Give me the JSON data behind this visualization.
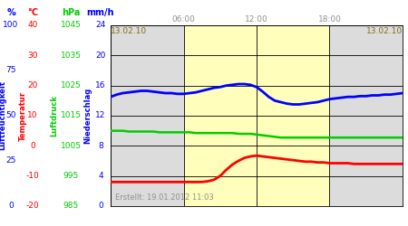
{
  "created_text": "Erstellt: 19.01.2012 11:03",
  "x_tick_labels": [
    "13.02.10",
    "06:00",
    "12:00",
    "18:00",
    "13.02.10"
  ],
  "x_tick_positions": [
    0,
    6,
    12,
    18,
    24
  ],
  "x_tick_colors": [
    "#8B6914",
    "#909090",
    "#909090",
    "#909090",
    "#8B6914"
  ],
  "yellow_region": [
    6,
    18
  ],
  "gray_bg_color": "#DCDCDC",
  "yellow_bg_color": "#FFFFBB",
  "left_axis_label": "Luftfeuchtigkeit",
  "temp_label": "Temperatur",
  "luftdruck_label": "Luftdruck",
  "niederschlag_label": "Niederschlag",
  "blue_line_x": [
    0,
    0.5,
    1,
    1.5,
    2,
    2.5,
    3,
    3.5,
    4,
    4.5,
    5,
    5.5,
    6,
    6.5,
    7,
    7.5,
    8,
    8.5,
    9,
    9.5,
    10,
    10.5,
    11,
    11.5,
    12,
    12.5,
    13,
    13.5,
    14,
    14.5,
    15,
    15.5,
    16,
    16.5,
    17,
    17.5,
    18,
    18.5,
    19,
    19.5,
    20,
    20.5,
    21,
    21.5,
    22,
    22.5,
    23,
    23.5,
    24
  ],
  "blue_line_y": [
    14.5,
    14.8,
    15.0,
    15.1,
    15.2,
    15.3,
    15.3,
    15.2,
    15.1,
    15.0,
    15.0,
    14.9,
    14.9,
    15.0,
    15.1,
    15.3,
    15.5,
    15.7,
    15.8,
    16.0,
    16.1,
    16.2,
    16.2,
    16.1,
    15.8,
    15.2,
    14.5,
    14.0,
    13.8,
    13.6,
    13.5,
    13.5,
    13.6,
    13.7,
    13.8,
    14.0,
    14.2,
    14.3,
    14.4,
    14.5,
    14.5,
    14.6,
    14.6,
    14.7,
    14.7,
    14.8,
    14.8,
    14.9,
    15.0
  ],
  "green_line_x": [
    0,
    0.5,
    1,
    1.5,
    2,
    2.5,
    3,
    3.5,
    4,
    4.5,
    5,
    5.5,
    6,
    6.5,
    7,
    7.5,
    8,
    8.5,
    9,
    9.5,
    10,
    10.5,
    11,
    11.5,
    12,
    12.5,
    13,
    13.5,
    14,
    14.5,
    15,
    15.5,
    16,
    16.5,
    17,
    17.5,
    18,
    18.5,
    19,
    19.5,
    20,
    20.5,
    21,
    21.5,
    22,
    22.5,
    23,
    23.5,
    24
  ],
  "green_line_y": [
    10.0,
    10.0,
    10.0,
    9.9,
    9.9,
    9.9,
    9.9,
    9.9,
    9.8,
    9.8,
    9.8,
    9.8,
    9.8,
    9.8,
    9.7,
    9.7,
    9.7,
    9.7,
    9.7,
    9.7,
    9.7,
    9.6,
    9.6,
    9.6,
    9.5,
    9.4,
    9.3,
    9.2,
    9.1,
    9.1,
    9.1,
    9.1,
    9.1,
    9.1,
    9.1,
    9.1,
    9.1,
    9.1,
    9.1,
    9.1,
    9.1,
    9.1,
    9.1,
    9.1,
    9.1,
    9.1,
    9.1,
    9.1,
    9.1
  ],
  "red_line_x": [
    0,
    0.5,
    1,
    1.5,
    2,
    2.5,
    3,
    3.5,
    4,
    4.5,
    5,
    5.5,
    6,
    6.5,
    7,
    7.5,
    8,
    8.5,
    9,
    9.5,
    10,
    10.5,
    11,
    11.5,
    12,
    12.5,
    13,
    13.5,
    14,
    14.5,
    15,
    15.5,
    16,
    16.5,
    17,
    17.5,
    18,
    18.5,
    19,
    19.5,
    20,
    20.5,
    21,
    21.5,
    22,
    22.5,
    23,
    23.5,
    24
  ],
  "red_line_y": [
    3.2,
    3.2,
    3.2,
    3.2,
    3.2,
    3.2,
    3.2,
    3.2,
    3.2,
    3.2,
    3.2,
    3.2,
    3.2,
    3.2,
    3.2,
    3.2,
    3.3,
    3.5,
    4.0,
    4.8,
    5.5,
    6.0,
    6.4,
    6.6,
    6.7,
    6.6,
    6.5,
    6.4,
    6.3,
    6.2,
    6.1,
    6.0,
    5.9,
    5.9,
    5.8,
    5.8,
    5.7,
    5.7,
    5.7,
    5.7,
    5.6,
    5.6,
    5.6,
    5.6,
    5.6,
    5.6,
    5.6,
    5.6,
    5.6
  ],
  "blue_color": "#0000FF",
  "green_color": "#00CC00",
  "red_color": "#FF0000",
  "pct_ticks": [
    0,
    25,
    50,
    75,
    100
  ],
  "c_ticks": [
    -20,
    -10,
    0,
    10,
    20,
    30,
    40
  ],
  "hpa_ticks": [
    985,
    995,
    1005,
    1015,
    1025,
    1035,
    1045
  ],
  "mmh_ticks": [
    0,
    4,
    8,
    12,
    16,
    20,
    24
  ],
  "ylim": [
    0,
    24
  ],
  "xlim": [
    0,
    24
  ]
}
